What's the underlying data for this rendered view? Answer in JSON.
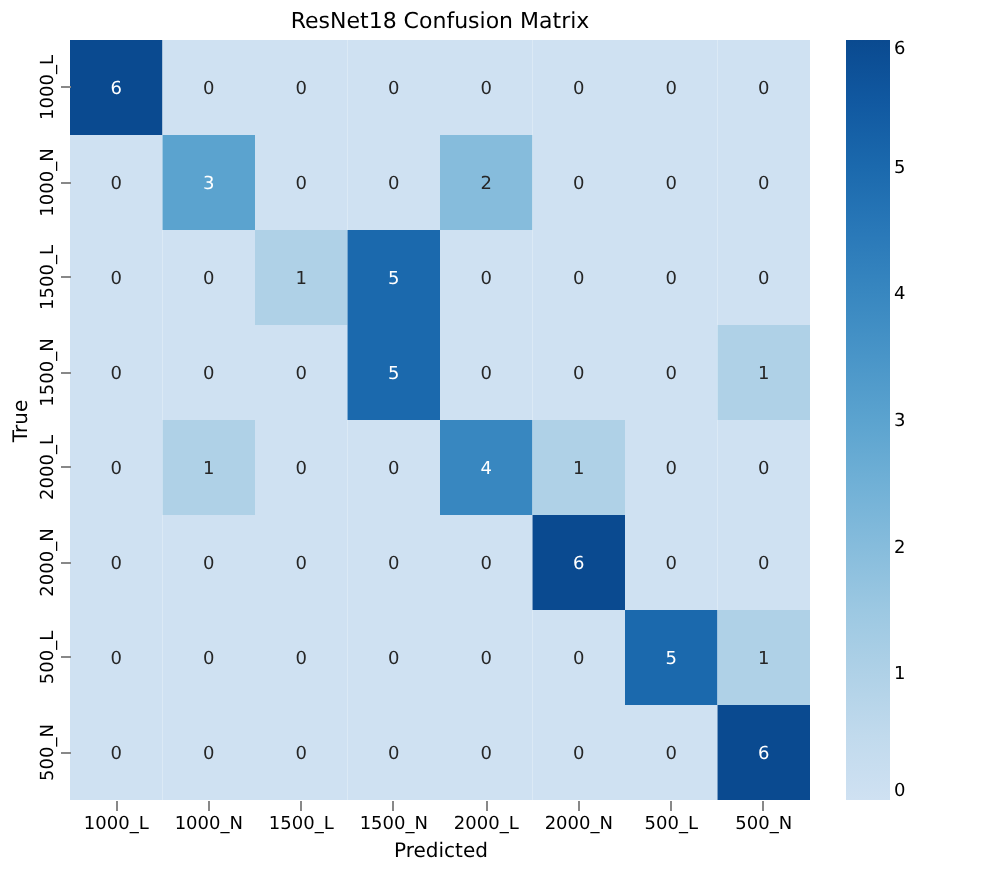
{
  "chart_data": {
    "type": "heatmap",
    "title": "ResNet18 Confusion Matrix",
    "xlabel": "Predicted",
    "ylabel": "True",
    "categories": [
      "1000_L",
      "1000_N",
      "1500_L",
      "1500_N",
      "2000_L",
      "2000_N",
      "500_L",
      "500_N"
    ],
    "y_categories": [
      "1000_L",
      "1000_N",
      "1500_L",
      "1500_N",
      "2000_L",
      "2000_N",
      "500_L",
      "500_N"
    ],
    "cells": [
      [
        6,
        0,
        0,
        0,
        0,
        0,
        0,
        0
      ],
      [
        0,
        3,
        0,
        0,
        2,
        0,
        0,
        0
      ],
      [
        0,
        0,
        1,
        5,
        0,
        0,
        0,
        0
      ],
      [
        0,
        0,
        0,
        5,
        0,
        0,
        0,
        1
      ],
      [
        0,
        1,
        0,
        0,
        4,
        1,
        0,
        0
      ],
      [
        0,
        0,
        0,
        0,
        0,
        6,
        0,
        0
      ],
      [
        0,
        0,
        0,
        0,
        0,
        0,
        5,
        1
      ],
      [
        0,
        0,
        0,
        0,
        0,
        0,
        0,
        6
      ]
    ],
    "clim": [
      0,
      6
    ],
    "cticks": [
      0,
      1,
      2,
      3,
      4,
      5,
      6
    ],
    "data_labels": true
  }
}
